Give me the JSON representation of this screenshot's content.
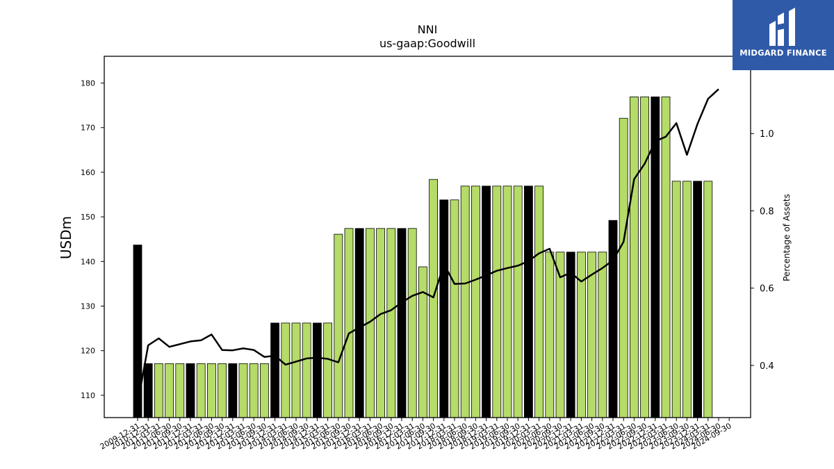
{
  "logo": {
    "text": "MIDGARD FINANCE",
    "icon": "midgard-logo-icon",
    "background": "#2f5aa8"
  },
  "chart_data": {
    "type": "bar",
    "title": "NNI",
    "subtitle": "us-gaap:Goodwill",
    "ylabel": "USDm",
    "y2label": "Percentage of Assets",
    "ylim": [
      105.0,
      186.0
    ],
    "y2lim": [
      0.265,
      1.2
    ],
    "yticks": [
      110,
      120,
      130,
      140,
      150,
      160,
      170,
      180
    ],
    "y2ticks": [
      "0.4",
      "0.6",
      "0.8",
      "1.0"
    ],
    "colors": {
      "annual": "#000000",
      "quarterly": "#b5db68",
      "line": "#000000"
    },
    "categories": [
      "2009-12-31",
      "2010-12-31",
      "2011-03-31",
      "2011-06-30",
      "2011-09-30",
      "2011-12-31",
      "2012-03-31",
      "2012-06-30",
      "2012-09-30",
      "2012-12-31",
      "2013-03-31",
      "2013-06-30",
      "2013-09-30",
      "2013-12-31",
      "2014-03-31",
      "2014-06-30",
      "2014-09-30",
      "2014-12-31",
      "2015-03-31",
      "2015-06-30",
      "2015-09-30",
      "2015-12-31",
      "2016-03-31",
      "2016-06-30",
      "2016-09-30",
      "2016-12-31",
      "2017-03-31",
      "2017-06-30",
      "2017-09-30",
      "2017-12-31",
      "2018-03-31",
      "2018-06-30",
      "2018-09-30",
      "2018-12-31",
      "2019-03-31",
      "2019-06-30",
      "2019-09-30",
      "2019-12-31",
      "2020-03-31",
      "2020-06-30",
      "2020-09-30",
      "2020-12-31",
      "2021-03-31",
      "2021-06-30",
      "2021-09-30",
      "2021-12-31",
      "2022-03-31",
      "2022-06-30",
      "2022-09-30",
      "2022-12-31",
      "2023-03-31",
      "2023-06-30",
      "2023-09-30",
      "2023-12-31",
      "2024-03-31",
      "2024-06-30",
      "2024-09-30"
    ],
    "series": [
      {
        "values": [
          143.7,
          117.1,
          117.1,
          117.1,
          117.1,
          117.1,
          117.1,
          117.1,
          117.1,
          117.1,
          117.1,
          117.1,
          117.1,
          126.2,
          126.2,
          126.2,
          126.2,
          126.2,
          126.2,
          146.1,
          147.4,
          147.4,
          147.4,
          147.4,
          147.4,
          147.4,
          147.4,
          138.8,
          158.4,
          153.8,
          153.8,
          156.9,
          156.9,
          156.9,
          156.9,
          156.9,
          156.9,
          156.9,
          156.9,
          142.1,
          142.1,
          142.1,
          142.1,
          142.1,
          142.1,
          149.2,
          172.1,
          176.9,
          176.9,
          176.9,
          176.9,
          158.0,
          158.0,
          158.0,
          158.0,
          null,
          null
        ]
      },
      {
        "axis": "right",
        "values": [
          0.3,
          0.452,
          0.47,
          0.448,
          0.455,
          0.462,
          0.465,
          0.48,
          0.44,
          0.439,
          0.444,
          0.44,
          0.422,
          0.425,
          0.402,
          0.41,
          0.418,
          0.42,
          0.417,
          0.408,
          0.483,
          0.498,
          0.513,
          0.533,
          0.543,
          0.563,
          0.58,
          0.59,
          0.576,
          0.662,
          0.611,
          0.612,
          0.622,
          0.633,
          0.645,
          0.652,
          0.658,
          0.67,
          0.69,
          0.702,
          0.628,
          0.64,
          0.617,
          0.635,
          0.652,
          0.672,
          0.72,
          0.882,
          0.922,
          0.98,
          0.992,
          1.027,
          0.945,
          1.025,
          1.09,
          1.115,
          null
        ]
      }
    ]
  }
}
